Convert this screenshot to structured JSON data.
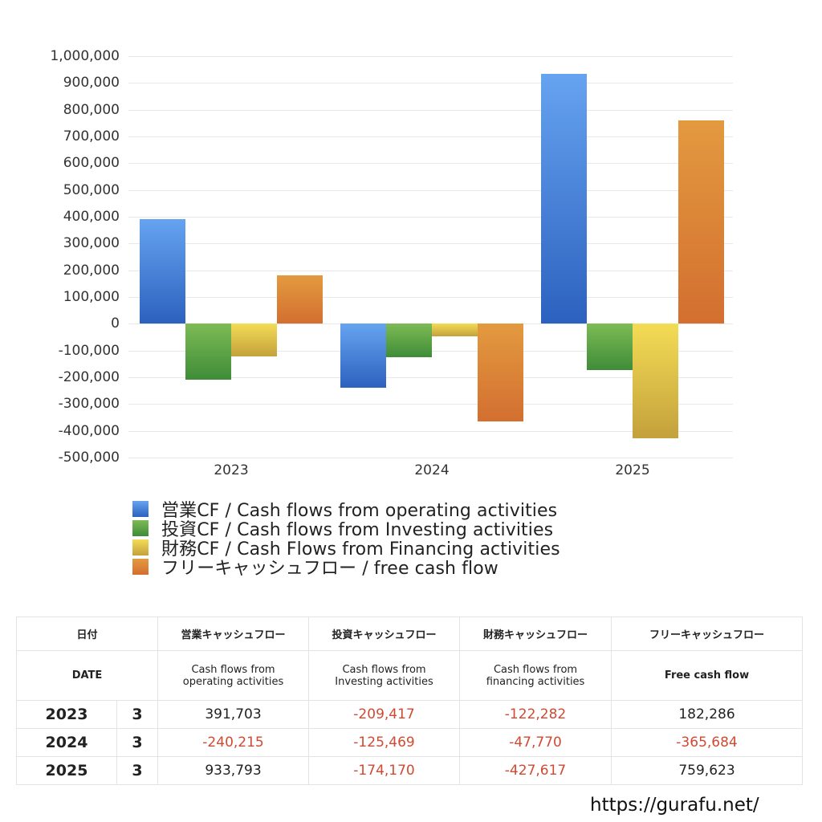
{
  "chart_data": {
    "type": "bar",
    "title": "",
    "xlabel": "",
    "ylabel": "",
    "categories": [
      "2023",
      "2024",
      "2025"
    ],
    "series": [
      {
        "name": "営業CF / Cash flows from operating activities",
        "color": "#3a78d6",
        "values": [
          391703,
          -240215,
          933793
        ]
      },
      {
        "name": "投資CF / Cash flows from Investing activities",
        "color": "#4a9a3e",
        "values": [
          -209417,
          -125469,
          -174170
        ]
      },
      {
        "name": "財務CF / Cash Flows from Financing activities",
        "color": "#e0c446",
        "values": [
          -122282,
          -47770,
          -427617
        ]
      },
      {
        "name": "フリーキャッシュフロー / free cash flow",
        "color": "#db7c34",
        "values": [
          182286,
          -365684,
          759623
        ]
      }
    ],
    "ylim": [
      -500000,
      1000000
    ],
    "yticks": [
      "1,000,000",
      "900,000",
      "800,000",
      "700,000",
      "600,000",
      "500,000",
      "400,000",
      "300,000",
      "200,000",
      "100,000",
      "0",
      "-100,000",
      "-200,000",
      "-300,000",
      "-400,000",
      "-500,000"
    ],
    "grid": true,
    "legend_position": "bottom"
  },
  "legend": [
    {
      "label": "営業CF / Cash flows from operating activities",
      "color_top": "#66a3f0",
      "color_bottom": "#2c62bf"
    },
    {
      "label": "投資CF / Cash flows from Investing activities",
      "color_top": "#7dbb55",
      "color_bottom": "#3f8c38"
    },
    {
      "label": "財務CF / Cash Flows from Financing activities",
      "color_top": "#f3dc55",
      "color_bottom": "#c4a13c"
    },
    {
      "label": "フリーキャッシュフロー / free cash flow",
      "color_top": "#e39a3f",
      "color_bottom": "#d36f30"
    }
  ],
  "table": {
    "header_jp": {
      "date": "日付",
      "operating": "営業キャッシュフロー",
      "investing": "投資キャッシュフロー",
      "financing": "財務キャッシュフロー",
      "free": "フリーキャッシュフロー"
    },
    "header_en": {
      "date": "DATE",
      "operating_1": "Cash flows from",
      "operating_2": "operating activities",
      "investing_1": "Cash flows from",
      "investing_2": "Investing activities",
      "financing_1": "Cash flows from",
      "financing_2": "financing activities",
      "free": "Free cash flow"
    },
    "rows": [
      {
        "year": "2023",
        "month": "3",
        "operating": "391,703",
        "investing": "-209,417",
        "financing": "-122,282",
        "free": "182,286"
      },
      {
        "year": "2024",
        "month": "3",
        "operating": "-240,215",
        "investing": "-125,469",
        "financing": "-47,770",
        "free": "-365,684"
      },
      {
        "year": "2025",
        "month": "3",
        "operating": "933,793",
        "investing": "-174,170",
        "financing": "-427,617",
        "free": "759,623"
      }
    ]
  },
  "footer": {
    "url": "https://gurafu.net/"
  }
}
